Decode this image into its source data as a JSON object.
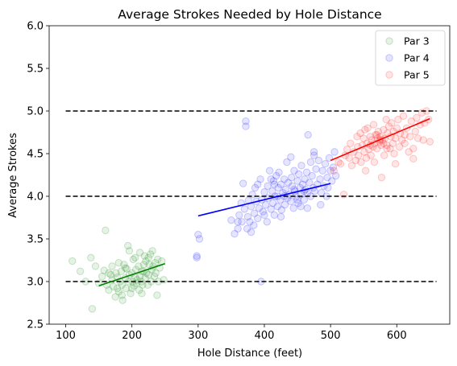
{
  "chart_data": {
    "type": "scatter",
    "title": "Average Strokes Needed by Hole Distance",
    "xlabel": "Hole Distance (feet)",
    "ylabel": "Average Strokes",
    "xlim": [
      75,
      680
    ],
    "ylim": [
      2.5,
      6.0
    ],
    "xticks": [
      100,
      200,
      300,
      400,
      500,
      600
    ],
    "yticks": [
      2.5,
      3.0,
      3.5,
      4.0,
      4.5,
      5.0,
      5.5,
      6.0
    ],
    "xtick_labels": [
      "100",
      "200",
      "300",
      "400",
      "500",
      "600"
    ],
    "ytick_labels": [
      "2.5",
      "3.0",
      "3.5",
      "4.0",
      "4.5",
      "5.0",
      "5.5",
      "6.0"
    ],
    "grid": false,
    "legend_position": "top-right",
    "reference_lines": [
      {
        "y": 3.0,
        "x_range": [
          100,
          660
        ],
        "color": "#000000",
        "style": "dashed"
      },
      {
        "y": 4.0,
        "x_range": [
          100,
          660
        ],
        "color": "#000000",
        "style": "dashed"
      },
      {
        "y": 5.0,
        "x_range": [
          100,
          660
        ],
        "color": "#000000",
        "style": "dashed"
      }
    ],
    "series": [
      {
        "name": "Par 3",
        "color": "#008000",
        "fit": {
          "x": [
            150,
            250
          ],
          "y": [
            2.95,
            3.21
          ]
        },
        "points": [
          [
            110,
            3.24
          ],
          [
            122,
            3.12
          ],
          [
            130,
            3.0
          ],
          [
            138,
            3.28
          ],
          [
            140,
            2.68
          ],
          [
            145,
            3.18
          ],
          [
            150,
            2.98
          ],
          [
            155,
            3.06
          ],
          [
            158,
            3.13
          ],
          [
            160,
            3.6
          ],
          [
            162,
            2.96
          ],
          [
            165,
            2.9
          ],
          [
            168,
            3.08
          ],
          [
            170,
            3.02
          ],
          [
            172,
            2.94
          ],
          [
            175,
            2.82
          ],
          [
            176,
            3.1
          ],
          [
            178,
            3.05
          ],
          [
            180,
            2.88
          ],
          [
            182,
            3.0
          ],
          [
            184,
            3.12
          ],
          [
            185,
            2.96
          ],
          [
            186,
            2.78
          ],
          [
            188,
            3.2
          ],
          [
            190,
            3.04
          ],
          [
            191,
            2.92
          ],
          [
            192,
            3.15
          ],
          [
            194,
            3.42
          ],
          [
            195,
            3.0
          ],
          [
            196,
            3.08
          ],
          [
            198,
            2.86
          ],
          [
            200,
            3.1
          ],
          [
            201,
            3.0
          ],
          [
            202,
            3.26
          ],
          [
            203,
            2.95
          ],
          [
            205,
            3.05
          ],
          [
            206,
            3.14
          ],
          [
            207,
            2.98
          ],
          [
            208,
            3.02
          ],
          [
            210,
            3.18
          ],
          [
            211,
            2.9
          ],
          [
            212,
            3.06
          ],
          [
            214,
            3.0
          ],
          [
            215,
            3.12
          ],
          [
            216,
            2.96
          ],
          [
            218,
            3.2
          ],
          [
            219,
            3.3
          ],
          [
            220,
            3.04
          ],
          [
            221,
            3.24
          ],
          [
            222,
            3.1
          ],
          [
            224,
            2.96
          ],
          [
            225,
            3.08
          ],
          [
            226,
            3.2
          ],
          [
            228,
            3.32
          ],
          [
            229,
            3.0
          ],
          [
            230,
            3.14
          ],
          [
            231,
            3.36
          ],
          [
            232,
            3.18
          ],
          [
            234,
            3.06
          ],
          [
            235,
            3.22
          ],
          [
            236,
            3.1
          ],
          [
            238,
            2.84
          ],
          [
            239,
            3.26
          ],
          [
            240,
            3.0
          ],
          [
            242,
            3.16
          ],
          [
            245,
            3.24
          ],
          [
            248,
            3.02
          ],
          [
            180,
            3.22
          ],
          [
            196,
            3.36
          ],
          [
            212,
            3.34
          ],
          [
            170,
            3.18
          ],
          [
            185,
            2.84
          ],
          [
            200,
            2.92
          ],
          [
            215,
            2.86
          ],
          [
            225,
            3.28
          ],
          [
            190,
            3.16
          ],
          [
            205,
            3.28
          ],
          [
            218,
            3.12
          ],
          [
            165,
            3.1
          ],
          [
            178,
            2.92
          ]
        ]
      },
      {
        "name": "Par 4",
        "color": "#0000ff",
        "fit": {
          "x": [
            300,
            500
          ],
          "y": [
            3.77,
            4.15
          ]
        },
        "points": [
          [
            298,
            3.28
          ],
          [
            300,
            3.55
          ],
          [
            302,
            3.5
          ],
          [
            298,
            3.3
          ],
          [
            350,
            3.72
          ],
          [
            355,
            3.56
          ],
          [
            360,
            3.62
          ],
          [
            362,
            3.78
          ],
          [
            365,
            3.92
          ],
          [
            366,
            3.7
          ],
          [
            368,
            4.15
          ],
          [
            370,
            3.85
          ],
          [
            372,
            4.88
          ],
          [
            372,
            4.82
          ],
          [
            374,
            3.62
          ],
          [
            375,
            3.76
          ],
          [
            376,
            3.95
          ],
          [
            378,
            3.7
          ],
          [
            380,
            3.88
          ],
          [
            382,
            4.02
          ],
          [
            384,
            3.66
          ],
          [
            385,
            3.8
          ],
          [
            386,
            4.1
          ],
          [
            388,
            3.94
          ],
          [
            390,
            3.74
          ],
          [
            392,
            3.86
          ],
          [
            394,
            4.2
          ],
          [
            395,
            3.0
          ],
          [
            396,
            3.96
          ],
          [
            398,
            3.82
          ],
          [
            400,
            4.05
          ],
          [
            402,
            3.9
          ],
          [
            404,
            3.7
          ],
          [
            405,
            4.12
          ],
          [
            406,
            3.98
          ],
          [
            408,
            4.3
          ],
          [
            410,
            3.85
          ],
          [
            412,
            4.06
          ],
          [
            413,
            3.92
          ],
          [
            414,
            4.18
          ],
          [
            415,
            3.78
          ],
          [
            416,
            4.0
          ],
          [
            418,
            4.24
          ],
          [
            420,
            3.88
          ],
          [
            421,
            4.1
          ],
          [
            422,
            4.28
          ],
          [
            424,
            3.96
          ],
          [
            425,
            4.14
          ],
          [
            426,
            3.84
          ],
          [
            428,
            4.04
          ],
          [
            430,
            4.2
          ],
          [
            431,
            3.9
          ],
          [
            432,
            4.08
          ],
          [
            434,
            4.4
          ],
          [
            435,
            3.98
          ],
          [
            436,
            4.16
          ],
          [
            438,
            4.02
          ],
          [
            440,
            3.94
          ],
          [
            441,
            4.22
          ],
          [
            442,
            4.12
          ],
          [
            444,
            3.86
          ],
          [
            445,
            4.3
          ],
          [
            446,
            4.06
          ],
          [
            448,
            4.0
          ],
          [
            450,
            4.18
          ],
          [
            451,
            3.92
          ],
          [
            452,
            4.26
          ],
          [
            454,
            4.1
          ],
          [
            455,
            4.02
          ],
          [
            456,
            4.36
          ],
          [
            458,
            4.14
          ],
          [
            460,
            3.96
          ],
          [
            461,
            4.2
          ],
          [
            462,
            4.08
          ],
          [
            464,
            4.28
          ],
          [
            465,
            4.04
          ],
          [
            466,
            4.72
          ],
          [
            468,
            4.16
          ],
          [
            470,
            4.0
          ],
          [
            472,
            4.24
          ],
          [
            474,
            4.1
          ],
          [
            475,
            4.48
          ],
          [
            476,
            4.06
          ],
          [
            478,
            4.32
          ],
          [
            480,
            4.14
          ],
          [
            482,
            4.42
          ],
          [
            484,
            4.2
          ],
          [
            486,
            4.04
          ],
          [
            488,
            4.3
          ],
          [
            490,
            4.12
          ],
          [
            492,
            4.38
          ],
          [
            494,
            4.0
          ],
          [
            495,
            4.22
          ],
          [
            496,
            4.1
          ],
          [
            498,
            4.45
          ],
          [
            500,
            4.3
          ],
          [
            502,
            4.18
          ],
          [
            504,
            4.34
          ],
          [
            506,
            4.52
          ],
          [
            508,
            4.24
          ],
          [
            390,
            4.14
          ],
          [
            410,
            4.2
          ],
          [
            425,
            3.76
          ],
          [
            440,
            4.46
          ],
          [
            455,
            3.88
          ],
          [
            470,
            4.4
          ],
          [
            485,
            3.9
          ],
          [
            400,
            3.78
          ],
          [
            420,
            4.0
          ],
          [
            445,
            4.08
          ],
          [
            465,
            3.86
          ],
          [
            475,
            4.52
          ],
          [
            430,
            4.0
          ],
          [
            380,
            3.58
          ],
          [
            360,
            3.7
          ],
          [
            450,
            3.96
          ],
          [
            460,
            4.06
          ],
          [
            415,
            4.14
          ]
        ]
      },
      {
        "name": "Par 5",
        "color": "#ff0000",
        "fit": {
          "x": [
            500,
            650
          ],
          "y": [
            4.42,
            4.91
          ]
        },
        "points": [
          [
            505,
            4.3
          ],
          [
            512,
            4.4
          ],
          [
            515,
            4.38
          ],
          [
            520,
            4.02
          ],
          [
            522,
            4.48
          ],
          [
            525,
            4.55
          ],
          [
            528,
            4.45
          ],
          [
            530,
            4.62
          ],
          [
            532,
            4.36
          ],
          [
            535,
            4.52
          ],
          [
            538,
            4.42
          ],
          [
            540,
            4.7
          ],
          [
            541,
            4.58
          ],
          [
            542,
            4.48
          ],
          [
            545,
            4.74
          ],
          [
            546,
            4.4
          ],
          [
            548,
            4.6
          ],
          [
            550,
            4.68
          ],
          [
            551,
            4.52
          ],
          [
            552,
            4.78
          ],
          [
            554,
            4.45
          ],
          [
            555,
            4.62
          ],
          [
            556,
            4.8
          ],
          [
            558,
            4.55
          ],
          [
            560,
            4.7
          ],
          [
            561,
            4.48
          ],
          [
            562,
            4.66
          ],
          [
            564,
            4.58
          ],
          [
            565,
            4.84
          ],
          [
            566,
            4.62
          ],
          [
            568,
            4.72
          ],
          [
            570,
            4.56
          ],
          [
            571,
            4.68
          ],
          [
            572,
            4.76
          ],
          [
            574,
            4.64
          ],
          [
            575,
            4.7
          ],
          [
            576,
            4.6
          ],
          [
            577,
            4.22
          ],
          [
            578,
            4.66
          ],
          [
            580,
            4.78
          ],
          [
            581,
            4.48
          ],
          [
            582,
            4.68
          ],
          [
            584,
            4.9
          ],
          [
            585,
            4.6
          ],
          [
            586,
            4.74
          ],
          [
            588,
            4.82
          ],
          [
            590,
            4.56
          ],
          [
            591,
            4.7
          ],
          [
            592,
            4.86
          ],
          [
            594,
            4.62
          ],
          [
            595,
            4.76
          ],
          [
            596,
            4.5
          ],
          [
            598,
            4.68
          ],
          [
            600,
            4.8
          ],
          [
            602,
            4.9
          ],
          [
            604,
            4.58
          ],
          [
            605,
            4.74
          ],
          [
            608,
            4.66
          ],
          [
            610,
            4.94
          ],
          [
            612,
            4.62
          ],
          [
            615,
            4.8
          ],
          [
            618,
            4.52
          ],
          [
            620,
            4.7
          ],
          [
            622,
            4.88
          ],
          [
            625,
            4.56
          ],
          [
            628,
            4.76
          ],
          [
            630,
            4.92
          ],
          [
            632,
            4.68
          ],
          [
            635,
            4.84
          ],
          [
            638,
            4.98
          ],
          [
            640,
            4.66
          ],
          [
            642,
            4.86
          ],
          [
            645,
            5.0
          ],
          [
            648,
            4.9
          ],
          [
            650,
            4.64
          ],
          [
            560,
            4.6
          ],
          [
            575,
            4.66
          ],
          [
            585,
            4.56
          ],
          [
            570,
            4.72
          ],
          [
            553,
            4.3
          ],
          [
            566,
            4.4
          ],
          [
            580,
            4.62
          ],
          [
            598,
            4.38
          ],
          [
            612,
            4.72
          ],
          [
            625,
            4.44
          ]
        ]
      }
    ]
  }
}
